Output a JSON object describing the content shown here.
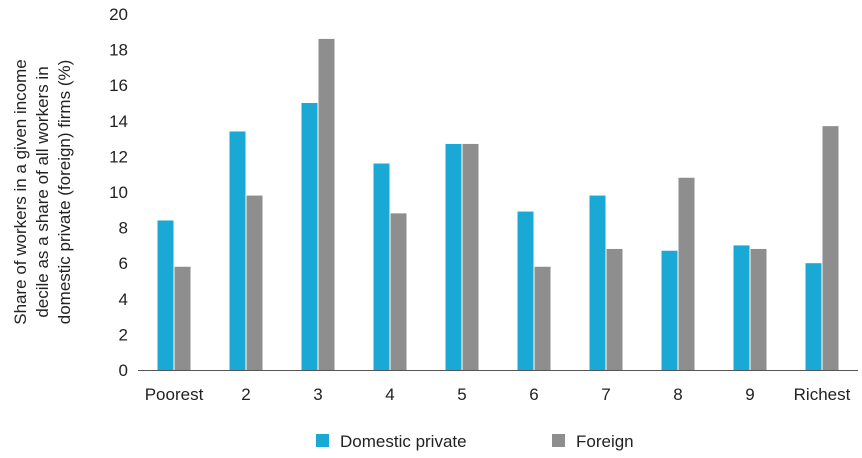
{
  "chart_data": {
    "type": "bar",
    "categories": [
      "Poorest",
      "2",
      "3",
      "4",
      "5",
      "6",
      "7",
      "8",
      "9",
      "Richest"
    ],
    "series": [
      {
        "name": "Domestic private",
        "color": "#1aa9d4",
        "values": [
          8.4,
          13.4,
          15.0,
          11.6,
          12.7,
          8.9,
          9.8,
          6.7,
          7.0,
          6.0
        ]
      },
      {
        "name": "Foreign",
        "color": "#8e8e8e",
        "values": [
          5.8,
          9.8,
          18.6,
          8.8,
          12.7,
          5.8,
          6.8,
          10.8,
          6.8,
          13.7
        ]
      }
    ],
    "ylabel_lines": [
      "Share of workers in a given income",
      "decile as a share of all workers in",
      "domestic private (foreign) firms (%)"
    ],
    "xlabel": "",
    "title": "",
    "ylim": [
      0,
      20
    ],
    "yticks": [
      0,
      2,
      4,
      6,
      8,
      10,
      12,
      14,
      16,
      18,
      20
    ],
    "grid": false,
    "legend": "bottom-center",
    "axis_color": "#555555"
  }
}
